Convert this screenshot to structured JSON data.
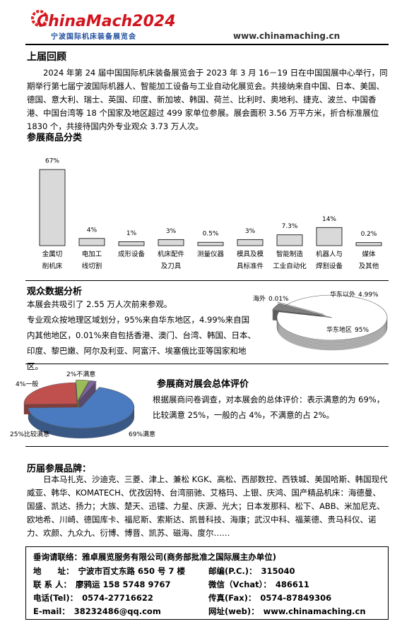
{
  "header": {
    "logo": "ChinaMach2024",
    "subtitle": "宁波国际机床装备展览会",
    "url": "www.chinamaching.cn"
  },
  "review": {
    "title": "上届回顾",
    "text": "2024 年第 24 届中国国际机床装备展览会于 2023 年 3 月 16－19 日在中国国展中心举行，同期举行第七届宁波国际机器人、智能加工设备与工业自动化展览会。共接纳来自中国、日本、美国、德国、意大利、瑞士、英国、印度、新加坡、韩国、荷兰、比利时、奥地利、捷克、波兰、中国香港、中国台湾等 18 个国家及地区超过 499 家单位参展。展会面积 3.56 万平方米，折合标准展位 1830 个，共接待国内外专业观众 3.73 万人次。"
  },
  "audience": {
    "title": "观众数据分析",
    "text1": "本展会共吸引了 2.55 万人次前来参观。",
    "text2": "专业观众按地理区域划分，95%来自华东地区，4.99%来自国内其他地区，0.01%来自包括香港、澳门、台湾、韩国、日本、印度、黎巴嫩、阿尔及利亚、阿富汗、埃塞俄比亚等国家和地区。"
  },
  "evaluation": {
    "title": "参展商对展会总体评价",
    "text": "根据展商问卷调查，对本展会的总体评价：表示满意的为 69%，比较满意 25%，一般的占 4%，不满意的占 2%。"
  },
  "brands": {
    "title": "历届参展品牌：",
    "text": "日本马扎克、沙迪克、三菱、津上、兼松 KGK、高松、西部数控、西铁城、美国哈斯、韩国现代威亚、韩华、KOMATECH、优孜因特、台湾丽驰、艾格玛、上银、庆鸿、国产精品机床：海德曼、国盛、凯达、扬力；大族、楚天、迅镭、力星、庆源、光大；日本发那科、松下、ABB、米加尼克、欧地希、川崎、德国库卡、福尼斯、索斯达、凯普科技、海康；武汉中科、福莱德、贵马科仪、诺力、欢颜、九众九、衍博、博晋、凯苏、磁海、度尔……"
  },
  "contact": {
    "intro": {
      "label": "垂询请联络：",
      "value": "雅卓展览服务有限公司(商务部批准之国际展主办单位)"
    },
    "items": [
      {
        "label": "地　　址：",
        "value": "宁波市百丈东路 650 号 7 楼"
      },
      {
        "label": "邮编(P.C.)：",
        "value": "315040"
      },
      {
        "label": "联 系 人：",
        "value": "廖鸦运 158 5748 9767"
      },
      {
        "label": "微信（Vchat）：",
        "value": "486611"
      },
      {
        "label": "电话(Tel)：",
        "value": "0574-27716622"
      },
      {
        "label": "传真(Fax)：",
        "value": "0574-87849306"
      },
      {
        "label": "E-mail：",
        "value": "38232486@qq.com"
      },
      {
        "label": "网址(web)：",
        "value": "www.chinamaching.cn"
      }
    ]
  },
  "chart_data": [
    {
      "type": "bar",
      "title": "参展商品分类",
      "color": "#d9d9d9",
      "categories": [
        "金属切\n削机床",
        "电加工\n线切割",
        "成形设备",
        "机床配件\n及刀具",
        "测量仪器",
        "模具及模\n具标准件",
        "智能制造\n工业自动化",
        "机器人与\n焊割设备",
        "媒体\n及其他"
      ],
      "values": [
        67,
        4,
        1,
        3,
        0.5,
        3,
        7.3,
        14,
        0.2
      ],
      "value_labels": [
        "67%",
        "4%",
        "1%",
        "3%",
        "0.5%",
        "3%",
        "7.3%",
        "14%",
        "0.2%"
      ]
    },
    {
      "type": "pie",
      "categories": [
        "华东地区",
        "华东以外",
        "海外"
      ],
      "values": [
        95,
        4.99,
        0.01
      ],
      "value_labels": [
        "95%",
        "4.99%",
        "0.01%"
      ],
      "colors": [
        "#ffffff",
        "#7f7f7f",
        "#404040"
      ]
    },
    {
      "type": "pie",
      "categories": [
        "满意",
        "比较满意",
        "一般",
        "不满意"
      ],
      "values": [
        69,
        25,
        4,
        2
      ],
      "value_labels": [
        "69%",
        "25%",
        "4%",
        "2%"
      ],
      "colors": [
        "#4a7bc0",
        "#c0504d",
        "#9bbb59",
        "#8064a2"
      ]
    }
  ]
}
